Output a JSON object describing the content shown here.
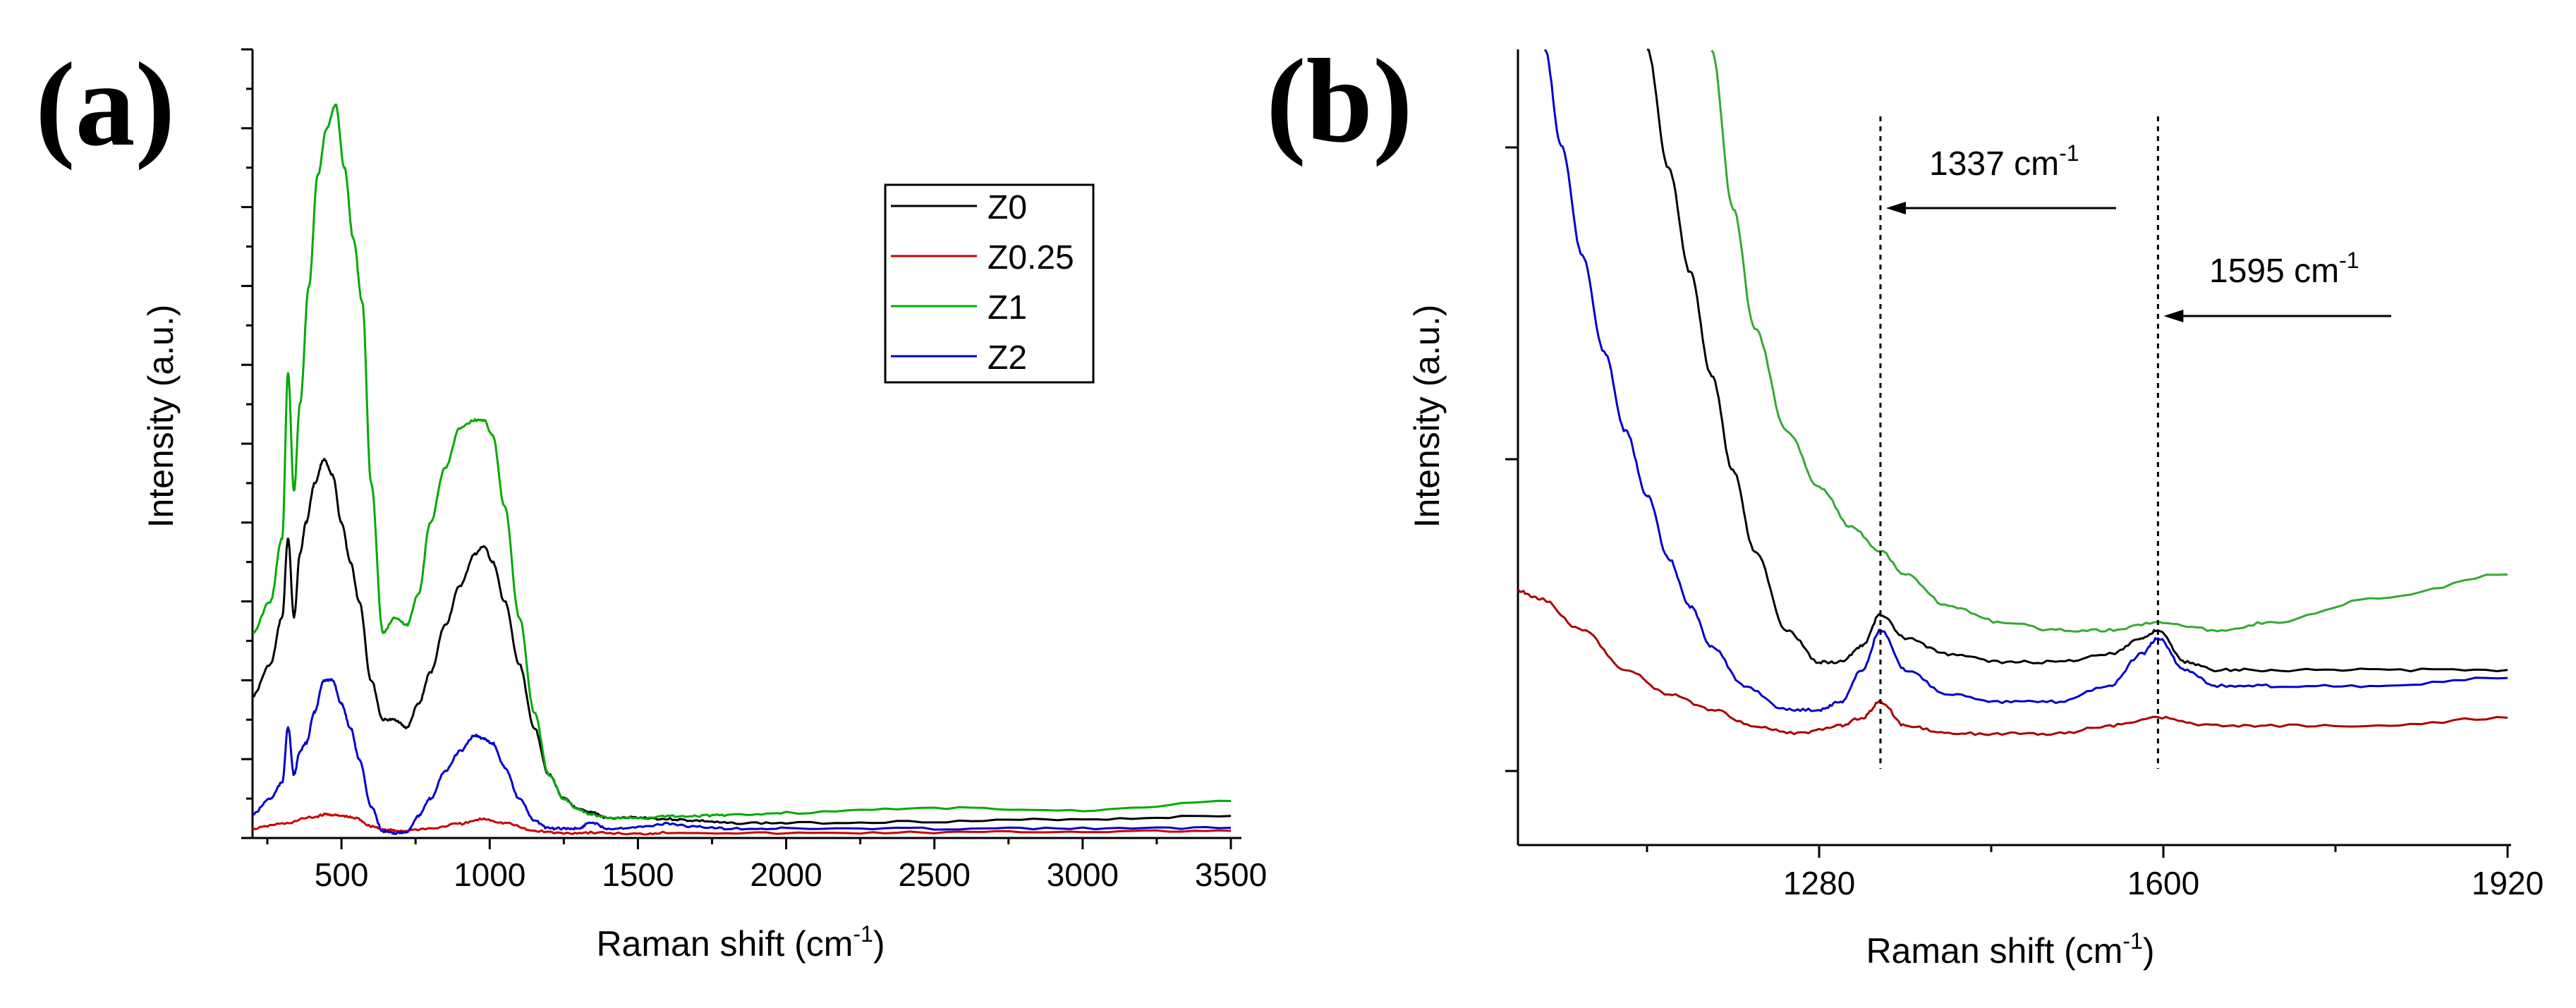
{
  "chart_data": [
    {
      "panel_label": "(a)",
      "type": "line",
      "xlabel": "Raman shift (cm",
      "xlabel_sup": "-1",
      "xlabel_close": ")",
      "ylabel": "Intensity (a.u.)",
      "xlim": [
        200,
        3500
      ],
      "ylim": [
        0,
        100
      ],
      "xticks": [
        500,
        1000,
        1500,
        2000,
        2500,
        3000,
        3500
      ],
      "xtick_labels": [
        "500",
        "1000",
        "1500",
        "2000",
        "2500",
        "3000",
        "3500"
      ],
      "legend": {
        "placement": "top-center",
        "entries": [
          "Z0",
          "Z0.25",
          "Z1",
          "Z2"
        ]
      },
      "series": [
        {
          "name": "Z0",
          "color": "#000000",
          "x": [
            200,
            260,
            300,
            320,
            340,
            360,
            380,
            410,
            440,
            470,
            500,
            530,
            560,
            600,
            640,
            680,
            720,
            760,
            800,
            850,
            900,
            950,
            980,
            1010,
            1050,
            1100,
            1150,
            1200,
            1250,
            1300,
            1340,
            1400,
            1500,
            1600,
            1700,
            1800,
            2000,
            2500,
            3000,
            3500
          ],
          "y": [
            18,
            22,
            28,
            38,
            28,
            36,
            40,
            45,
            48,
            46,
            40,
            35,
            30,
            20,
            15,
            15,
            14,
            17,
            21,
            27,
            32,
            36,
            37,
            35,
            30,
            22,
            14,
            8,
            5,
            3.6,
            3.3,
            2.5,
            2.6,
            2.4,
            2.2,
            1.9,
            1.9,
            2.1,
            2.4,
            2.8
          ]
        },
        {
          "name": "Z0.25",
          "color": "#cc0000",
          "x": [
            200,
            300,
            400,
            450,
            500,
            550,
            600,
            650,
            700,
            800,
            900,
            980,
            1050,
            1150,
            1250,
            1340,
            1500,
            1600,
            2000,
            2500,
            3000,
            3500
          ],
          "y": [
            1.2,
            1.8,
            2.6,
            3.0,
            2.8,
            2.5,
            1.5,
            1.0,
            0.9,
            1.2,
            1.8,
            2.4,
            1.9,
            0.9,
            0.6,
            0.7,
            0.5,
            0.7,
            0.6,
            0.7,
            0.8,
            0.9
          ]
        },
        {
          "name": "Z1",
          "color": "#00aa00",
          "x": [
            200,
            260,
            300,
            320,
            340,
            360,
            390,
            420,
            450,
            480,
            510,
            540,
            570,
            600,
            640,
            680,
            720,
            760,
            800,
            850,
            900,
            950,
            980,
            1010,
            1050,
            1100,
            1150,
            1200,
            1250,
            1300,
            1340,
            1400,
            1500,
            1600,
            1700,
            1800,
            2000,
            2500,
            3000,
            3500
          ],
          "y": [
            26,
            30,
            38,
            59,
            44,
            55,
            70,
            84,
            90,
            93,
            85,
            76,
            68,
            45,
            26,
            28,
            27,
            31,
            40,
            47,
            52,
            53,
            53,
            51,
            42,
            28,
            16,
            8,
            5,
            3.6,
            3.0,
            2.6,
            2.5,
            2.8,
            2.8,
            2.9,
            3.2,
            3.8,
            3.5,
            4.7
          ]
        },
        {
          "name": "Z2",
          "color": "#0000cc",
          "x": [
            200,
            260,
            300,
            320,
            340,
            360,
            380,
            410,
            440,
            470,
            500,
            530,
            560,
            600,
            640,
            680,
            720,
            760,
            800,
            850,
            900,
            950,
            980,
            1010,
            1050,
            1100,
            1150,
            1200,
            1250,
            1300,
            1340,
            1400,
            1500,
            1600,
            1700,
            1800,
            2000,
            2500,
            3000,
            3500
          ],
          "y": [
            3,
            5,
            7,
            14,
            8,
            11,
            12,
            16,
            20,
            20,
            17,
            14,
            10,
            4,
            0.8,
            0.6,
            0.8,
            2.8,
            5,
            8.5,
            11,
            13,
            12.6,
            12,
            9,
            5,
            2.2,
            1.2,
            1.2,
            1.2,
            2.0,
            1.2,
            1.4,
            1.8,
            1.4,
            1.2,
            1.2,
            1.2,
            1.2,
            1.3
          ]
        }
      ]
    },
    {
      "panel_label": "(b)",
      "type": "line",
      "xlabel": "Raman shift (cm",
      "xlabel_sup": "-1",
      "xlabel_close": ")",
      "ylabel": "Intensity (a.u.)",
      "xlim": [
        1000,
        1920
      ],
      "ylim": [
        0,
        100
      ],
      "xticks": [
        1280,
        1600,
        1920
      ],
      "xtick_labels": [
        "1280",
        "1600",
        "1920"
      ],
      "annotations": [
        {
          "text": "1337 cm",
          "sup": "-1",
          "x": 1337,
          "arrow_to": 1337
        },
        {
          "text": "1595 cm",
          "sup": "-1",
          "x": 1595,
          "arrow_to": 1595
        }
      ],
      "series": [
        {
          "name": "Z0",
          "color": "#000000",
          "x": [
            1120,
            1140,
            1160,
            1180,
            1200,
            1220,
            1250,
            1280,
            1300,
            1320,
            1337,
            1360,
            1400,
            1450,
            1500,
            1550,
            1580,
            1595,
            1620,
            1650,
            1700,
            1800,
            1920
          ],
          "y": [
            100,
            85,
            72,
            59,
            47,
            37,
            27,
            23,
            23,
            25,
            29,
            26,
            24,
            23,
            23,
            24,
            26,
            27,
            23,
            22,
            22,
            22,
            22
          ]
        },
        {
          "name": "Z0.25",
          "color": "#aa0000",
          "x": [
            1000,
            1020,
            1060,
            1100,
            1140,
            1180,
            1220,
            1260,
            1300,
            1320,
            1337,
            1360,
            1400,
            1450,
            1500,
            1550,
            1595,
            1640,
            1700,
            1800,
            1920
          ],
          "y": [
            32,
            31,
            27,
            22,
            19,
            17,
            15,
            14,
            15,
            16,
            18,
            15,
            14,
            14,
            14,
            15,
            16,
            15,
            15,
            15,
            16
          ]
        },
        {
          "name": "Z1",
          "color": "#33aa33",
          "x": [
            1180,
            1200,
            1220,
            1250,
            1280,
            1310,
            1337,
            1360,
            1400,
            1450,
            1500,
            1550,
            1595,
            1650,
            1700,
            1800,
            1920
          ],
          "y": [
            100,
            80,
            65,
            52,
            45,
            40,
            37,
            34,
            30,
            28,
            27,
            27,
            28,
            27,
            28,
            31,
            34
          ]
        },
        {
          "name": "Z2",
          "color": "#0000cc",
          "x": [
            1025,
            1040,
            1060,
            1080,
            1100,
            1120,
            1140,
            1160,
            1180,
            1210,
            1250,
            1280,
            1300,
            1320,
            1337,
            1360,
            1400,
            1450,
            1500,
            1550,
            1580,
            1595,
            1620,
            1650,
            1700,
            1800,
            1920
          ],
          "y": [
            100,
            88,
            74,
            62,
            52,
            44,
            36,
            30,
            25,
            20,
            17,
            17,
            18,
            22,
            27,
            22,
            19,
            18,
            18,
            20,
            24,
            26,
            22,
            20,
            20,
            20,
            21
          ]
        }
      ]
    }
  ]
}
